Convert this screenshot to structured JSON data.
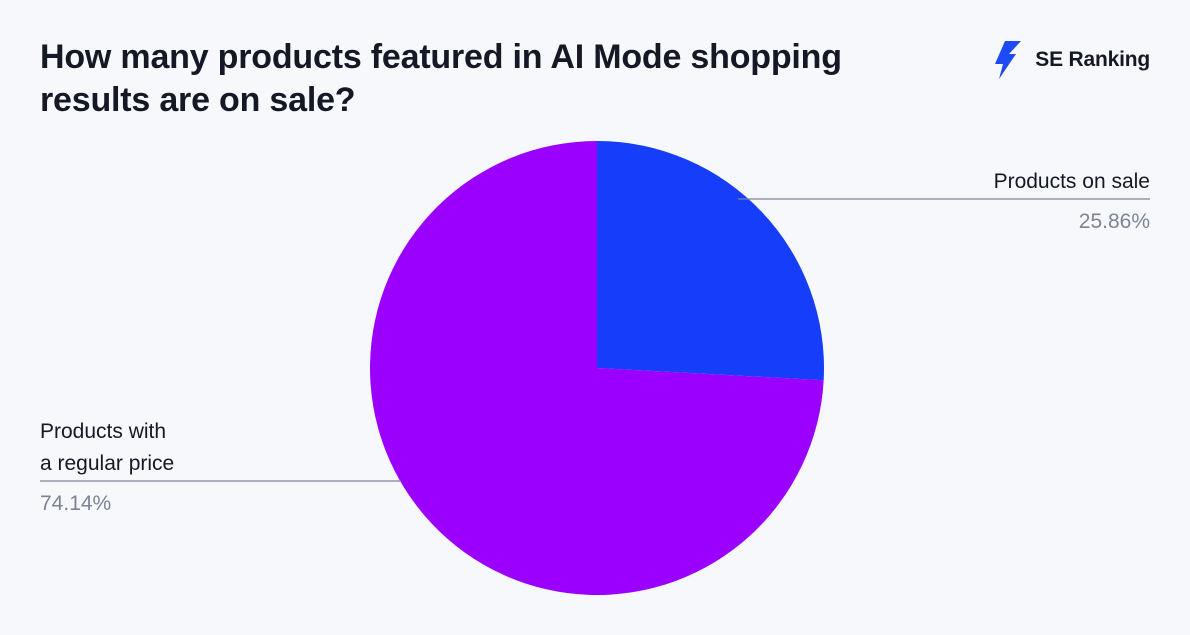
{
  "header": {
    "title": "How many products featured in AI Mode shopping results are on sale?"
  },
  "brand": {
    "name": "SE Ranking",
    "icon": "se-ranking-logo-icon",
    "color": "#1d4bf5"
  },
  "chart_data": {
    "type": "pie",
    "title": "How many products featured in AI Mode shopping results are on sale?",
    "slices": [
      {
        "name": "Products on sale",
        "label_lines": [
          "Products on sale"
        ],
        "value": 25.86,
        "value_label": "25.86%",
        "color": "#163dfa",
        "label_side": "right"
      },
      {
        "name": "Products with a regular price",
        "label_lines": [
          "Products with",
          "a regular price"
        ],
        "value": 74.14,
        "value_label": "74.14%",
        "color": "#9b00ff",
        "label_side": "left"
      }
    ],
    "start_angle_deg": 0,
    "direction": "clockwise",
    "legend": "none"
  }
}
